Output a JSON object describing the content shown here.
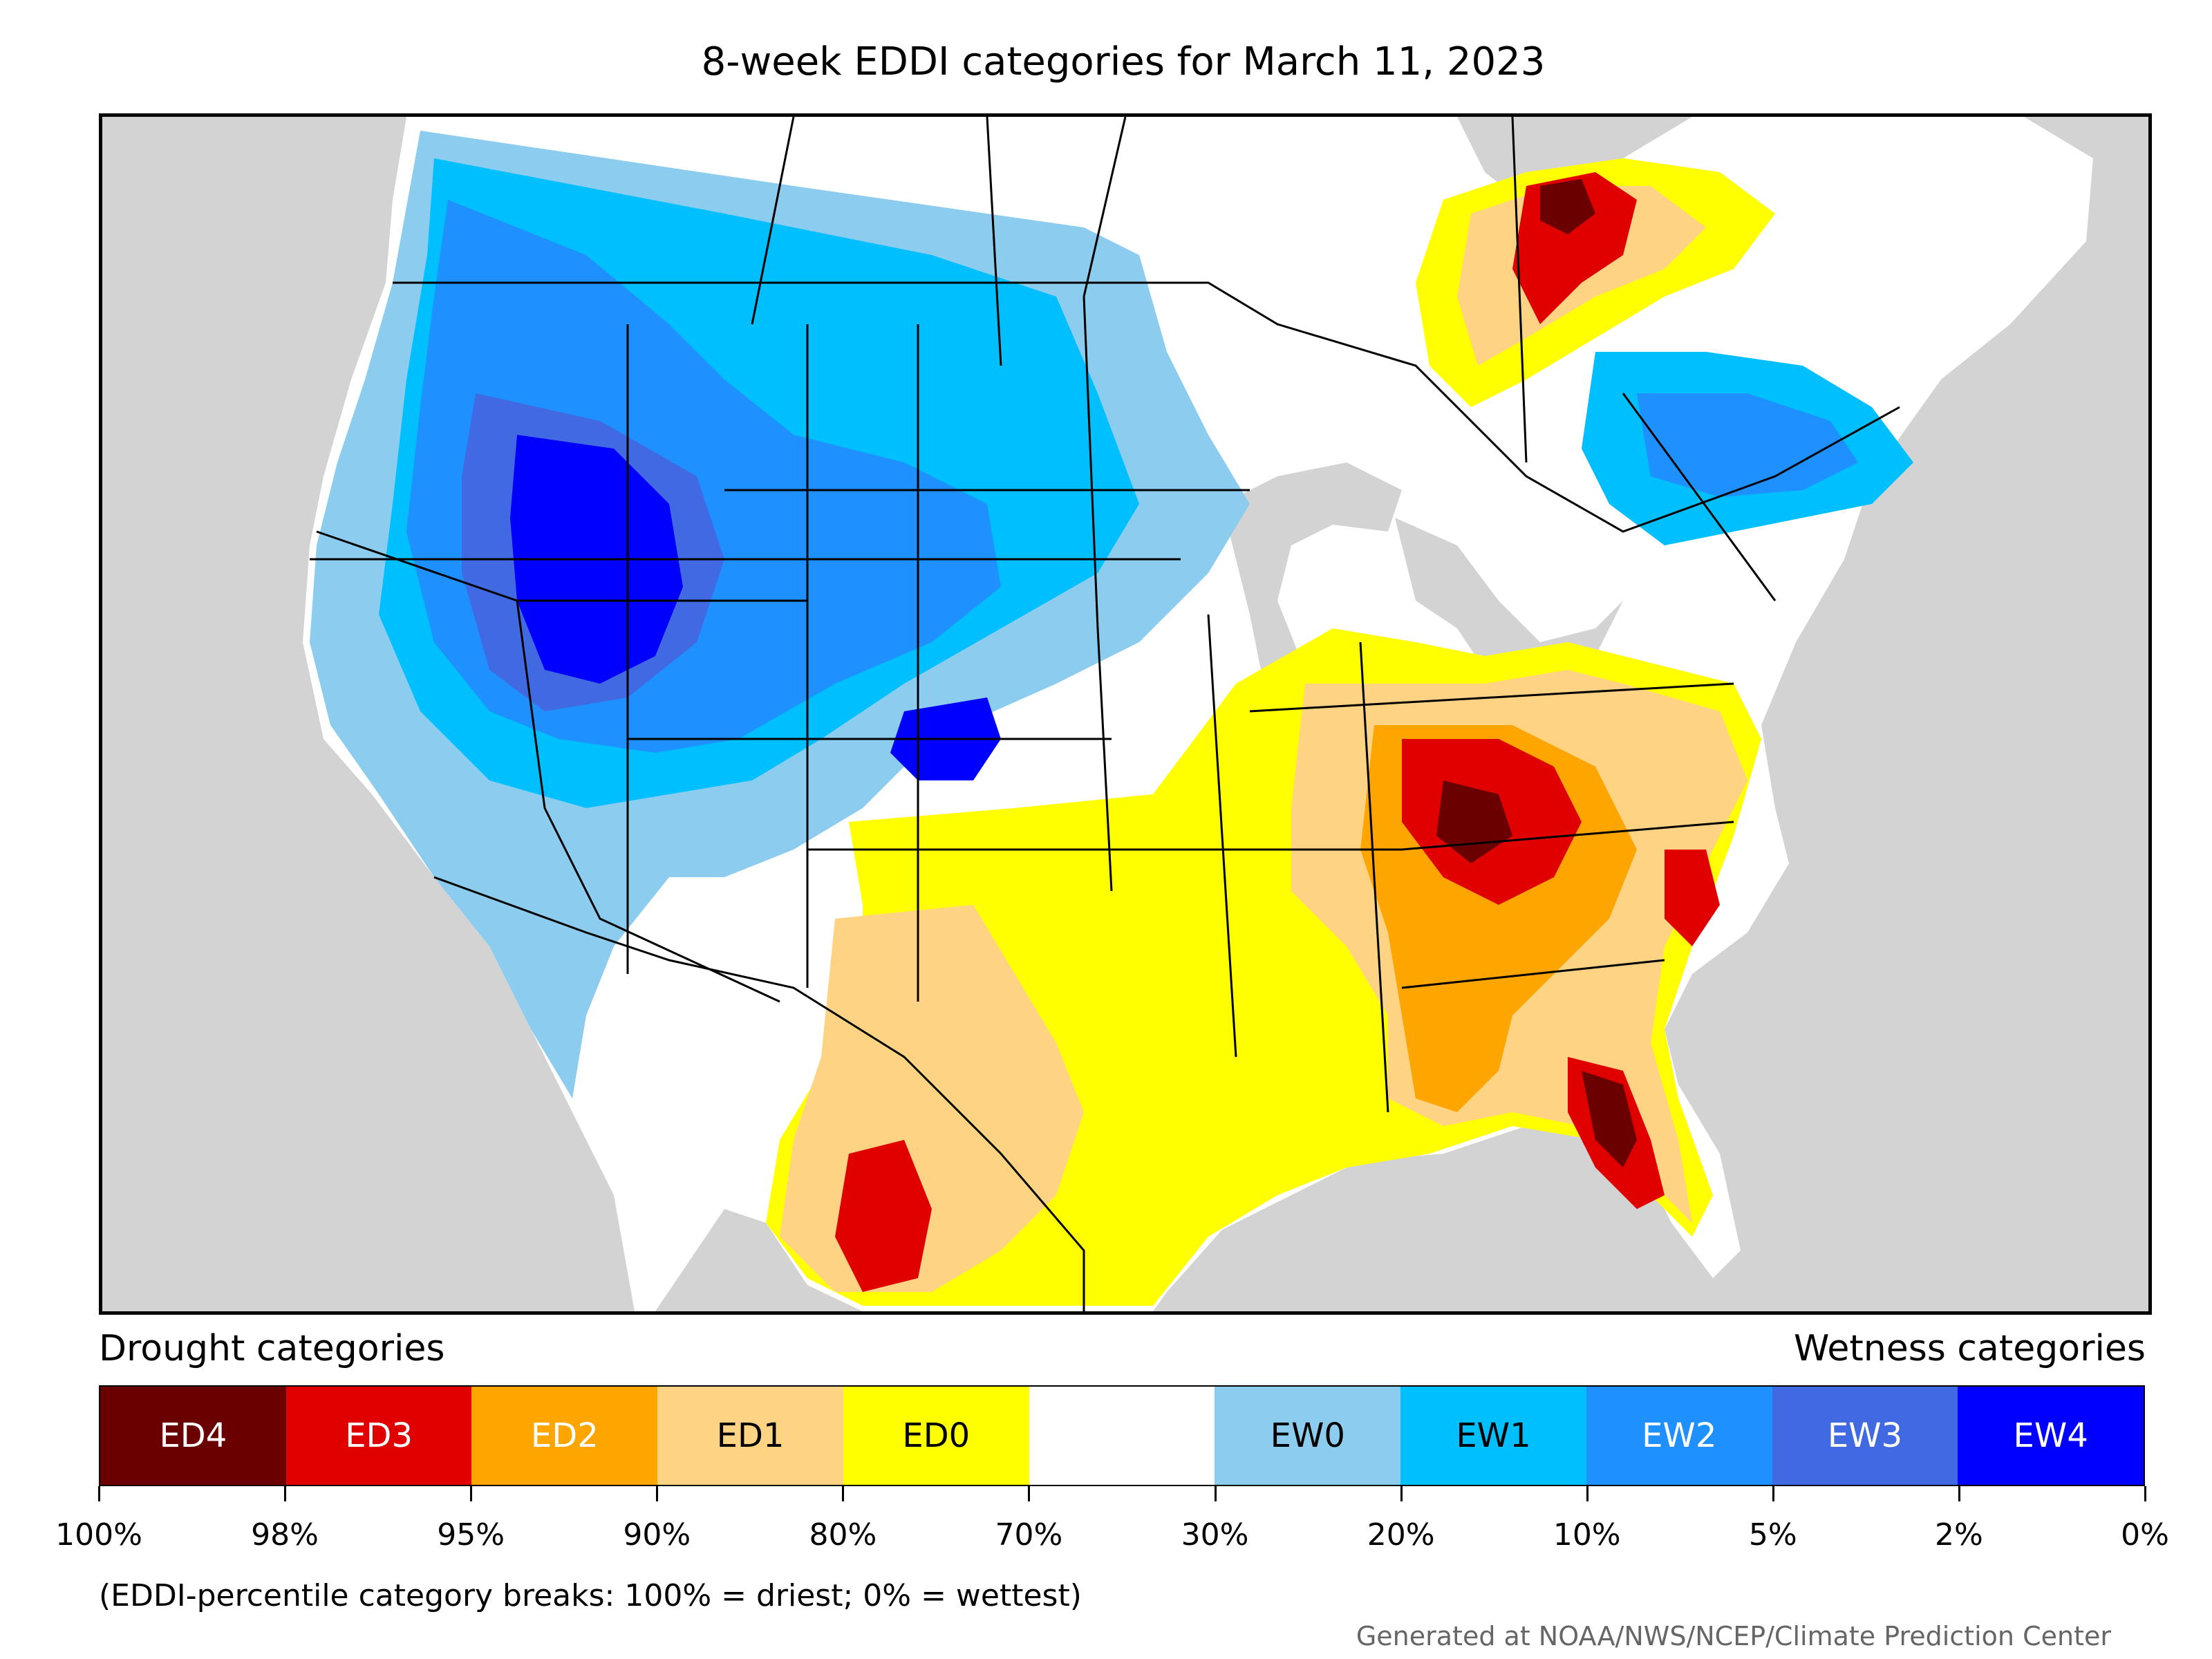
{
  "title": "8-week EDDI categories for March 11, 2023",
  "legend": {
    "drought_heading": "Drought categories",
    "wetness_heading": "Wetness categories",
    "categories": [
      {
        "label": "ED4",
        "color": "#6b0000",
        "text_color": "#ffffff"
      },
      {
        "label": "ED3",
        "color": "#e00000",
        "text_color": "#ffffff"
      },
      {
        "label": "ED2",
        "color": "#ffa500",
        "text_color": "#ffffff"
      },
      {
        "label": "ED1",
        "color": "#fed384",
        "text_color": "#000000"
      },
      {
        "label": "ED0",
        "color": "#ffff00",
        "text_color": "#000000"
      },
      {
        "label": "",
        "color": "#ffffff",
        "text_color": "#000000"
      },
      {
        "label": "EW0",
        "color": "#8ccdef",
        "text_color": "#000000"
      },
      {
        "label": "EW1",
        "color": "#00bfff",
        "text_color": "#000000"
      },
      {
        "label": "EW2",
        "color": "#1e90ff",
        "text_color": "#ffffff"
      },
      {
        "label": "EW3",
        "color": "#4169e1",
        "text_color": "#ffffff"
      },
      {
        "label": "EW4",
        "color": "#0000ff",
        "text_color": "#ffffff"
      }
    ],
    "ticks": [
      "100%",
      "98%",
      "95%",
      "90%",
      "80%",
      "70%",
      "30%",
      "20%",
      "10%",
      "5%",
      "2%",
      "0%"
    ]
  },
  "note": "(EDDI-percentile category breaks: 100% = driest; 0% = wettest)",
  "credit": "Generated at NOAA/NWS/NCEP/Climate Prediction Center",
  "map": {
    "ocean_color": "#d3d3d3",
    "land_color": "#ffffff",
    "border_color": "#000000"
  }
}
